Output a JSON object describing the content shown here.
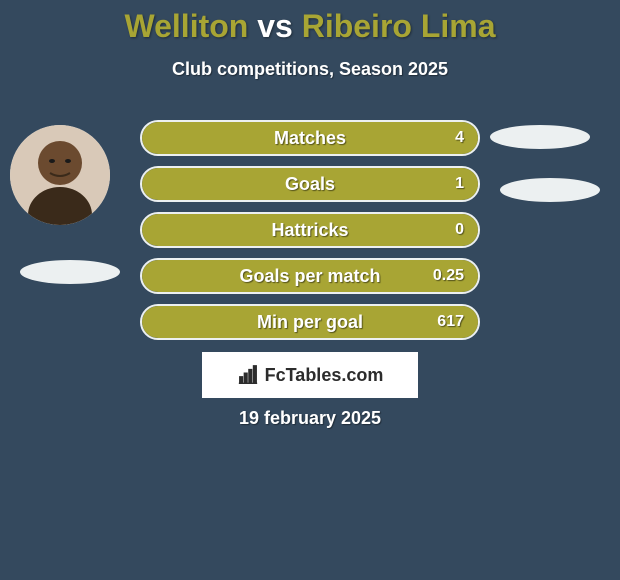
{
  "header": {
    "player1": "Welliton",
    "vs": "vs",
    "player2": "Ribeiro Lima",
    "player1_color": "#a8a534",
    "vs_color": "#ffffff",
    "player2_color": "#a8a534"
  },
  "subtitle": "Club competitions, Season 2025",
  "stats": {
    "bar_fill_color": "#a8a534",
    "bar_border_color": "#ecf0f1",
    "text_color": "#ffffff",
    "rows": [
      {
        "label": "Matches",
        "value": "4",
        "fill_pct": 100
      },
      {
        "label": "Goals",
        "value": "1",
        "fill_pct": 100
      },
      {
        "label": "Hattricks",
        "value": "0",
        "fill_pct": 100
      },
      {
        "label": "Goals per match",
        "value": "0.25",
        "fill_pct": 100
      },
      {
        "label": "Min per goal",
        "value": "617",
        "fill_pct": 100
      }
    ]
  },
  "brand": {
    "icon": "bar-chart-icon",
    "text": "FcTables.com"
  },
  "date": "19 february 2025",
  "styling": {
    "background_color": "#34495e",
    "accent_color": "#a8a534",
    "highlight_color": "#ecf0f1",
    "brand_bg": "#ffffff"
  }
}
